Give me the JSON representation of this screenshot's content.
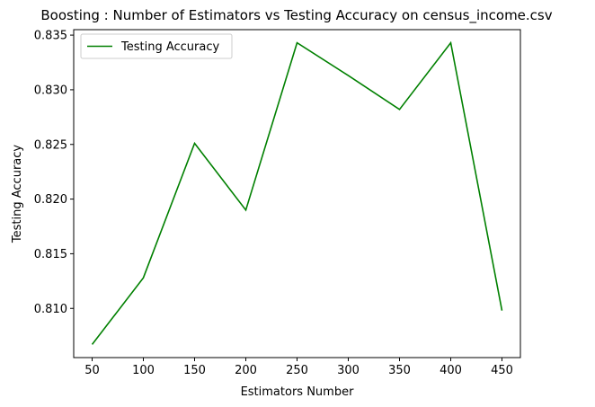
{
  "chart_data": {
    "type": "line",
    "title": "Boosting : Number of Estimators vs Testing Accuracy on census_income.csv",
    "xlabel": "Estimators Number",
    "ylabel": "Testing Accuracy",
    "x": [
      50,
      100,
      150,
      200,
      250,
      300,
      350,
      400,
      450
    ],
    "series": [
      {
        "name": "Testing Accuracy",
        "color": "#008000",
        "values": [
          0.8067,
          0.8128,
          0.8251,
          0.819,
          0.8343,
          0.8313,
          0.8282,
          0.8343,
          0.8098
        ]
      }
    ],
    "xlim": [
      32,
      468
    ],
    "ylim": [
      0.8055,
      0.8355
    ],
    "xticks": [
      "50",
      "100",
      "150",
      "200",
      "250",
      "300",
      "350",
      "400",
      "450"
    ],
    "yticks": [
      "0.810",
      "0.815",
      "0.820",
      "0.825",
      "0.830",
      "0.835"
    ],
    "grid": false,
    "legend_position": "upper left"
  }
}
